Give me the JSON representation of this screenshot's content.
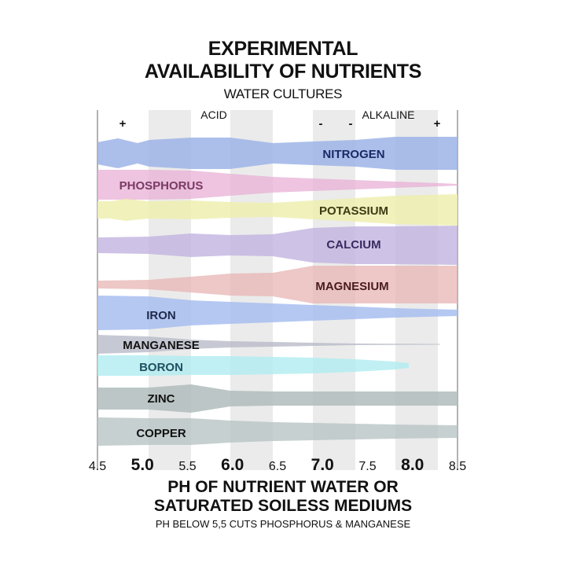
{
  "title_line1": "EXPERIMENTAL",
  "title_line2": "AVAILABILITY OF NUTRIENTS",
  "subtitle": "WATER CULTURES",
  "acid_label": "ACID",
  "alkaline_label": "ALKALINE",
  "markers": [
    "+",
    "-",
    "-",
    "+"
  ],
  "ph_ticks": [
    {
      "label": "4.5",
      "value": 4.5,
      "major": false
    },
    {
      "label": "5.0",
      "value": 5.0,
      "major": true
    },
    {
      "label": "5.5",
      "value": 5.5,
      "major": false
    },
    {
      "label": "6.0",
      "value": 6.0,
      "major": true
    },
    {
      "label": "6.5",
      "value": 6.5,
      "major": false
    },
    {
      "label": "7.0",
      "value": 7.0,
      "major": true
    },
    {
      "label": "7.5",
      "value": 7.5,
      "major": false
    },
    {
      "label": "8.0",
      "value": 8.0,
      "major": true
    },
    {
      "label": "8.5",
      "value": 8.5,
      "major": false
    }
  ],
  "footer_line1": "PH OF NUTRIENT WATER OR",
  "footer_line2": "SATURATED SOILESS MEDIUMS",
  "footer_note": "PH BELOW 5,5 CUTS PHOSPHORUS & MANGANESE",
  "nutrients": [
    {
      "name": "NITROGEN",
      "fill": "#9db4e8",
      "label_color": "#1a2a66",
      "opacity": 0.85
    },
    {
      "name": "PHOSPHORUS",
      "fill": "#e8b0d6",
      "label_color": "#7a3a66",
      "opacity": 0.75
    },
    {
      "name": "POTASSIUM",
      "fill": "#eeeeb0",
      "label_color": "#3c3c14",
      "opacity": 0.85
    },
    {
      "name": "CALCIUM",
      "fill": "#c2b4e0",
      "label_color": "#3a2a60",
      "opacity": 0.8
    },
    {
      "name": "MAGNESIUM",
      "fill": "#e8b4b4",
      "label_color": "#4a1c1c",
      "opacity": 0.75
    },
    {
      "name": "IRON",
      "fill": "#a8bef0",
      "label_color": "#1e2a4c",
      "opacity": 0.85
    },
    {
      "name": "MANGANESE",
      "fill": "#b8bcc8",
      "label_color": "#121212",
      "opacity": 0.8
    },
    {
      "name": "BORON",
      "fill": "#b0ecf0",
      "label_color": "#1e5060",
      "opacity": 0.8
    },
    {
      "name": "ZINC",
      "fill": "#b0bcbc",
      "label_color": "#121212",
      "opacity": 0.85
    },
    {
      "name": "COPPER",
      "fill": "#b8c4c4",
      "label_color": "#121212",
      "opacity": 0.8
    }
  ]
}
